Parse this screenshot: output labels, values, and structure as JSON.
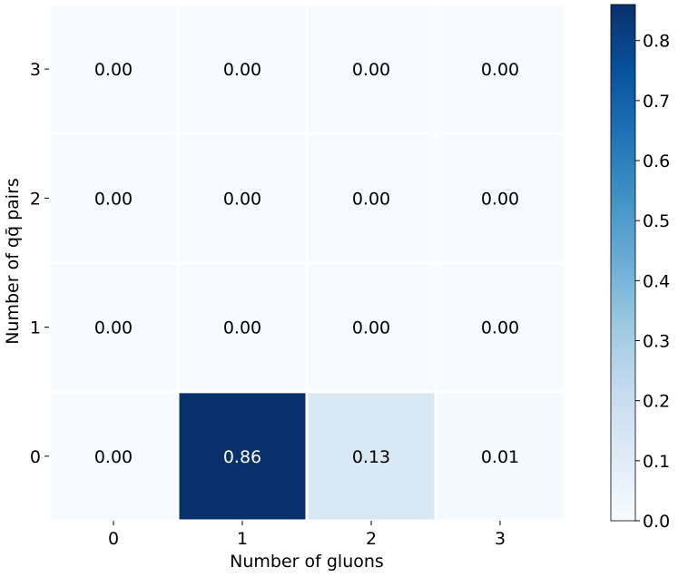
{
  "chart_data": {
    "type": "heatmap",
    "xlabel": "Number of gluons",
    "ylabel": "Number of qq̄ pairs",
    "x_categories": [
      "0",
      "1",
      "2",
      "3"
    ],
    "y_categories": [
      "0",
      "1",
      "2",
      "3"
    ],
    "values": [
      [
        0.0,
        0.86,
        0.13,
        0.01
      ],
      [
        0.0,
        0.0,
        0.0,
        0.0
      ],
      [
        0.0,
        0.0,
        0.0,
        0.0
      ],
      [
        0.0,
        0.0,
        0.0,
        0.0
      ]
    ],
    "cell_labels": [
      [
        "0.00",
        "0.86",
        "0.13",
        "0.01"
      ],
      [
        "0.00",
        "0.00",
        "0.00",
        "0.00"
      ],
      [
        "0.00",
        "0.00",
        "0.00",
        "0.00"
      ],
      [
        "0.00",
        "0.00",
        "0.00",
        "0.00"
      ]
    ],
    "colormap": "Blues",
    "colorbar": {
      "range": [
        0.0,
        0.86
      ],
      "ticks": [
        0.0,
        0.1,
        0.2,
        0.3,
        0.4,
        0.5,
        0.6,
        0.7,
        0.8
      ],
      "tick_labels": [
        "0.0",
        "0.1",
        "0.2",
        "0.3",
        "0.4",
        "0.5",
        "0.6",
        "0.7",
        "0.8"
      ],
      "placement": "right"
    },
    "grid": false
  }
}
